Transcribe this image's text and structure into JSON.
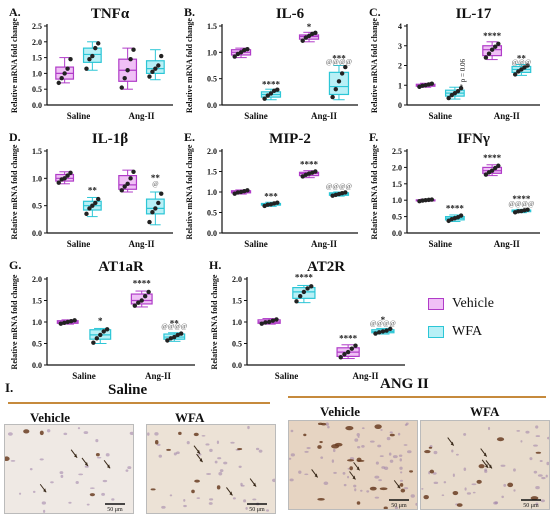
{
  "colors": {
    "vehicle": "#b03cc8",
    "wfa": "#2cc6d6",
    "vehicle_fill": "#f0c0f6",
    "wfa_fill": "#b8f0f6",
    "sig": "#222222",
    "sig_grey": "#888888"
  },
  "legend": [
    {
      "label": "Vehicle",
      "color": "#b03cc8"
    },
    {
      "label": "WFA",
      "color": "#2cc6d6"
    }
  ],
  "section_I": {
    "label": "I.",
    "saline": "Saline",
    "ang": "ANG II",
    "images": [
      {
        "label": "Vehicle",
        "scale": "50 μm"
      },
      {
        "label": "WFA",
        "scale": "50 μm"
      },
      {
        "label": "Vehicle",
        "scale": "50 μm"
      },
      {
        "label": "WFA",
        "scale": "50 μm"
      }
    ]
  },
  "chart_data": [
    {
      "type": "box",
      "panel_label": "A.",
      "title": "TNFα",
      "ylabel": "Relative mRNA fold change",
      "categories": [
        "Saline",
        "Ang-II"
      ],
      "ylim": [
        0,
        2.5
      ],
      "yticks": [
        0.0,
        0.5,
        1.0,
        1.5,
        2.0,
        2.5
      ],
      "series": [
        {
          "name": "Vehicle",
          "boxes": [
            {
              "min": 0.7,
              "q1": 0.82,
              "median": 1.0,
              "q3": 1.2,
              "max": 1.5,
              "points": [
                0.7,
                0.85,
                1.0,
                1.15,
                1.45
              ]
            },
            {
              "min": 0.5,
              "q1": 0.75,
              "median": 1.1,
              "q3": 1.45,
              "max": 1.8,
              "points": [
                0.55,
                0.85,
                1.1,
                1.45,
                1.75
              ]
            }
          ]
        },
        {
          "name": "WFA",
          "boxes": [
            {
              "min": 1.1,
              "q1": 1.35,
              "median": 1.6,
              "q3": 1.8,
              "max": 2.0,
              "points": [
                1.15,
                1.45,
                1.55,
                1.8,
                1.95
              ]
            },
            {
              "min": 0.8,
              "q1": 1.0,
              "median": 1.15,
              "q3": 1.4,
              "max": 1.75,
              "points": [
                0.9,
                1.05,
                1.15,
                1.25,
                1.55
              ]
            }
          ]
        }
      ],
      "annotations": []
    },
    {
      "type": "box",
      "panel_label": "B.",
      "title": "IL-6",
      "ylabel": "Relative mRNA fold change",
      "categories": [
        "Saline",
        "Ang-II"
      ],
      "ylim": [
        0,
        1.5
      ],
      "yticks": [
        0.0,
        0.5,
        1.0,
        1.5
      ],
      "series": [
        {
          "name": "Vehicle",
          "boxes": [
            {
              "min": 0.9,
              "q1": 0.95,
              "median": 1.0,
              "q3": 1.05,
              "max": 1.08,
              "points": [
                0.92,
                0.97,
                1.0,
                1.04,
                1.06
              ]
            },
            {
              "min": 1.2,
              "q1": 1.25,
              "median": 1.3,
              "q3": 1.33,
              "max": 1.38,
              "points": [
                1.22,
                1.28,
                1.31,
                1.35,
                1.37
              ]
            }
          ]
        },
        {
          "name": "WFA",
          "boxes": [
            {
              "min": 0.1,
              "q1": 0.15,
              "median": 0.2,
              "q3": 0.25,
              "max": 0.3,
              "points": [
                0.12,
                0.18,
                0.22,
                0.27,
                0.29
              ]
            },
            {
              "min": 0.1,
              "q1": 0.2,
              "median": 0.35,
              "q3": 0.62,
              "max": 0.75,
              "points": [
                0.15,
                0.3,
                0.45,
                0.6,
                0.72
              ]
            }
          ]
        }
      ],
      "annotations": [
        {
          "text": "****",
          "series": "WFA",
          "category": "Saline",
          "y": 0.33
        },
        {
          "text": "*",
          "series": "Vehicle",
          "category": "Ang-II",
          "y": 1.42
        },
        {
          "text": "***",
          "series": "WFA",
          "category": "Ang-II",
          "y": 0.83
        },
        {
          "text": "@@@@",
          "series": "WFA",
          "category": "Ang-II",
          "y": 0.78,
          "grey": true
        }
      ]
    },
    {
      "type": "box",
      "panel_label": "C.",
      "title": "IL-17",
      "ylabel": "Relative mRNA fold change",
      "categories": [
        "Saline",
        "Ang-II"
      ],
      "ylim": [
        0,
        4
      ],
      "yticks": [
        0,
        1,
        2,
        3,
        4
      ],
      "series": [
        {
          "name": "Vehicle",
          "boxes": [
            {
              "min": 0.9,
              "q1": 0.95,
              "median": 1.0,
              "q3": 1.05,
              "max": 1.1,
              "points": [
                0.92,
                0.98,
                1.0,
                1.04,
                1.08
              ]
            },
            {
              "min": 2.3,
              "q1": 2.5,
              "median": 2.8,
              "q3": 3.0,
              "max": 3.2,
              "points": [
                2.4,
                2.6,
                2.8,
                2.95,
                3.1
              ]
            }
          ]
        },
        {
          "name": "WFA",
          "boxes": [
            {
              "min": 0.3,
              "q1": 0.45,
              "median": 0.6,
              "q3": 0.75,
              "max": 0.9,
              "points": [
                0.35,
                0.5,
                0.6,
                0.7,
                0.85
              ]
            },
            {
              "min": 1.5,
              "q1": 1.65,
              "median": 1.8,
              "q3": 1.95,
              "max": 2.05,
              "points": [
                1.55,
                1.7,
                1.8,
                1.9,
                2.0
              ]
            }
          ]
        }
      ],
      "annotations": [
        {
          "text": "* p = 0.06",
          "series": "WFA",
          "category": "Saline",
          "y": 1.0,
          "vertical": true
        },
        {
          "text": "****",
          "series": "Vehicle",
          "category": "Ang-II",
          "y": 3.35
        },
        {
          "text": "**",
          "series": "WFA",
          "category": "Ang-II",
          "y": 2.2
        },
        {
          "text": "@@@",
          "series": "WFA",
          "category": "Ang-II",
          "y": 2.05,
          "grey": true
        }
      ]
    },
    {
      "type": "box",
      "panel_label": "D.",
      "title": "IL-1β",
      "ylabel": "Relative mRNA fold change",
      "categories": [
        "Saline",
        "Ang-II"
      ],
      "ylim": [
        0,
        1.5
      ],
      "yticks": [
        0.0,
        0.5,
        1.0,
        1.5
      ],
      "series": [
        {
          "name": "Vehicle",
          "boxes": [
            {
              "min": 0.9,
              "q1": 0.95,
              "median": 1.0,
              "q3": 1.07,
              "max": 1.12,
              "points": [
                0.92,
                0.98,
                1.0,
                1.05,
                1.1
              ]
            },
            {
              "min": 0.75,
              "q1": 0.8,
              "median": 0.88,
              "q3": 1.05,
              "max": 1.15,
              "points": [
                0.78,
                0.85,
                0.9,
                1.0,
                1.12
              ]
            }
          ]
        },
        {
          "name": "WFA",
          "boxes": [
            {
              "min": 0.3,
              "q1": 0.42,
              "median": 0.5,
              "q3": 0.58,
              "max": 0.65,
              "points": [
                0.35,
                0.45,
                0.5,
                0.55,
                0.62
              ]
            },
            {
              "min": 0.15,
              "q1": 0.35,
              "median": 0.45,
              "q3": 0.62,
              "max": 0.75,
              "points": [
                0.2,
                0.38,
                0.45,
                0.55,
                0.72
              ]
            }
          ]
        }
      ],
      "annotations": [
        {
          "text": "**",
          "series": "WFA",
          "category": "Saline",
          "y": 0.72
        },
        {
          "text": "**",
          "series": "WFA",
          "category": "Ang-II",
          "y": 0.95
        },
        {
          "text": "@",
          "series": "WFA",
          "category": "Ang-II",
          "y": 0.86,
          "grey": true
        }
      ]
    },
    {
      "type": "box",
      "panel_label": "E.",
      "title": "MIP-2",
      "ylabel": "Relative mRNA fold change",
      "categories": [
        "Saline",
        "Ang-II"
      ],
      "ylim": [
        0,
        2.0
      ],
      "yticks": [
        0.0,
        0.5,
        1.0,
        1.5,
        2.0
      ],
      "series": [
        {
          "name": "Vehicle",
          "boxes": [
            {
              "min": 0.95,
              "q1": 0.98,
              "median": 1.0,
              "q3": 1.03,
              "max": 1.05,
              "points": [
                0.96,
                0.99,
                1.0,
                1.02,
                1.04
              ]
            },
            {
              "min": 1.35,
              "q1": 1.4,
              "median": 1.45,
              "q3": 1.48,
              "max": 1.52,
              "points": [
                1.38,
                1.42,
                1.45,
                1.47,
                1.5
              ]
            }
          ]
        },
        {
          "name": "WFA",
          "boxes": [
            {
              "min": 0.65,
              "q1": 0.68,
              "median": 0.7,
              "q3": 0.72,
              "max": 0.75,
              "points": [
                0.66,
                0.69,
                0.7,
                0.72,
                0.74
              ]
            },
            {
              "min": 0.9,
              "q1": 0.92,
              "median": 0.95,
              "q3": 0.98,
              "max": 1.0,
              "points": [
                0.91,
                0.93,
                0.95,
                0.97,
                0.99
              ]
            }
          ]
        }
      ],
      "annotations": [
        {
          "text": "***",
          "series": "WFA",
          "category": "Saline",
          "y": 0.82
        },
        {
          "text": "****",
          "series": "Vehicle",
          "category": "Ang-II",
          "y": 1.6
        },
        {
          "text": "@@@@",
          "series": "WFA",
          "category": "Ang-II",
          "y": 1.08,
          "grey": true
        }
      ]
    },
    {
      "type": "box",
      "panel_label": "F.",
      "title": "IFNγ",
      "ylabel": "Relative mRNA fold change",
      "categories": [
        "Saline",
        "Ang-II"
      ],
      "ylim": [
        0,
        2.5
      ],
      "yticks": [
        0.0,
        0.5,
        1.0,
        1.5,
        2.0,
        2.5
      ],
      "series": [
        {
          "name": "Vehicle",
          "boxes": [
            {
              "min": 0.97,
              "q1": 0.98,
              "median": 1.0,
              "q3": 1.01,
              "max": 1.03,
              "points": [
                0.97,
                0.99,
                1.0,
                1.01,
                1.02
              ]
            },
            {
              "min": 1.75,
              "q1": 1.82,
              "median": 1.9,
              "q3": 2.0,
              "max": 2.08,
              "points": [
                1.78,
                1.85,
                1.9,
                1.98,
                2.05
              ]
            }
          ]
        },
        {
          "name": "WFA",
          "boxes": [
            {
              "min": 0.35,
              "q1": 0.4,
              "median": 0.45,
              "q3": 0.5,
              "max": 0.55,
              "points": [
                0.37,
                0.42,
                0.45,
                0.48,
                0.53
              ]
            },
            {
              "min": 0.62,
              "q1": 0.65,
              "median": 0.67,
              "q3": 0.7,
              "max": 0.72,
              "points": [
                0.63,
                0.66,
                0.67,
                0.69,
                0.71
              ]
            }
          ]
        }
      ],
      "annotations": [
        {
          "text": "****",
          "series": "WFA",
          "category": "Saline",
          "y": 0.65
        },
        {
          "text": "****",
          "series": "Vehicle",
          "category": "Ang-II",
          "y": 2.2
        },
        {
          "text": "****",
          "series": "WFA",
          "category": "Ang-II",
          "y": 0.95
        },
        {
          "text": "@@@@",
          "series": "WFA",
          "category": "Ang-II",
          "y": 0.82,
          "grey": true
        }
      ]
    },
    {
      "type": "box",
      "panel_label": "G.",
      "title": "AT1aR",
      "ylabel": "Relative mRNA fold change",
      "categories": [
        "Saline",
        "Ang-II"
      ],
      "ylim": [
        0,
        2.0
      ],
      "yticks": [
        0.0,
        0.5,
        1.0,
        1.5,
        2.0
      ],
      "series": [
        {
          "name": "Vehicle",
          "boxes": [
            {
              "min": 0.95,
              "q1": 0.97,
              "median": 1.0,
              "q3": 1.03,
              "max": 1.05,
              "points": [
                0.96,
                0.98,
                1.0,
                1.02,
                1.04
              ]
            },
            {
              "min": 1.35,
              "q1": 1.42,
              "median": 1.5,
              "q3": 1.65,
              "max": 1.72,
              "points": [
                1.38,
                1.45,
                1.5,
                1.6,
                1.7
              ]
            }
          ]
        },
        {
          "name": "WFA",
          "boxes": [
            {
              "min": 0.5,
              "q1": 0.6,
              "median": 0.7,
              "q3": 0.82,
              "max": 0.85,
              "points": [
                0.52,
                0.62,
                0.7,
                0.78,
                0.83
              ]
            },
            {
              "min": 0.55,
              "q1": 0.6,
              "median": 0.65,
              "q3": 0.72,
              "max": 0.75,
              "points": [
                0.57,
                0.62,
                0.65,
                0.7,
                0.73
              ]
            }
          ]
        }
      ],
      "annotations": [
        {
          "text": "*",
          "series": "WFA",
          "category": "Saline",
          "y": 0.95
        },
        {
          "text": "****",
          "series": "Vehicle",
          "category": "Ang-II",
          "y": 1.82
        },
        {
          "text": "**",
          "series": "WFA",
          "category": "Ang-II",
          "y": 0.9
        },
        {
          "text": "@@@@",
          "series": "WFA",
          "category": "Ang-II",
          "y": 0.85,
          "grey": true
        }
      ]
    },
    {
      "type": "box",
      "panel_label": "H.",
      "title": "AT2R",
      "ylabel": "Relative mRNA fold change",
      "categories": [
        "Saline",
        "Ang-II"
      ],
      "ylim": [
        0,
        2.0
      ],
      "yticks": [
        0.0,
        0.5,
        1.0,
        1.5,
        2.0
      ],
      "series": [
        {
          "name": "Vehicle",
          "boxes": [
            {
              "min": 0.95,
              "q1": 0.97,
              "median": 1.0,
              "q3": 1.05,
              "max": 1.08,
              "points": [
                0.96,
                0.99,
                1.0,
                1.03,
                1.06
              ]
            },
            {
              "min": 0.15,
              "q1": 0.2,
              "median": 0.3,
              "q3": 0.4,
              "max": 0.47,
              "points": [
                0.18,
                0.25,
                0.3,
                0.38,
                0.45
              ]
            }
          ]
        },
        {
          "name": "WFA",
          "boxes": [
            {
              "min": 1.45,
              "q1": 1.55,
              "median": 1.7,
              "q3": 1.8,
              "max": 1.85,
              "points": [
                1.48,
                1.6,
                1.7,
                1.78,
                1.83
              ]
            },
            {
              "min": 0.72,
              "q1": 0.75,
              "median": 0.78,
              "q3": 0.82,
              "max": 0.85,
              "points": [
                0.73,
                0.76,
                0.78,
                0.8,
                0.84
              ]
            }
          ]
        }
      ],
      "annotations": [
        {
          "text": "****",
          "series": "WFA",
          "category": "Saline",
          "y": 1.97
        },
        {
          "text": "****",
          "series": "Vehicle",
          "category": "Ang-II",
          "y": 0.55
        },
        {
          "text": "*",
          "series": "WFA",
          "category": "Ang-II",
          "y": 0.98
        },
        {
          "text": "@@@@",
          "series": "WFA",
          "category": "Ang-II",
          "y": 0.92,
          "grey": true
        }
      ]
    }
  ]
}
